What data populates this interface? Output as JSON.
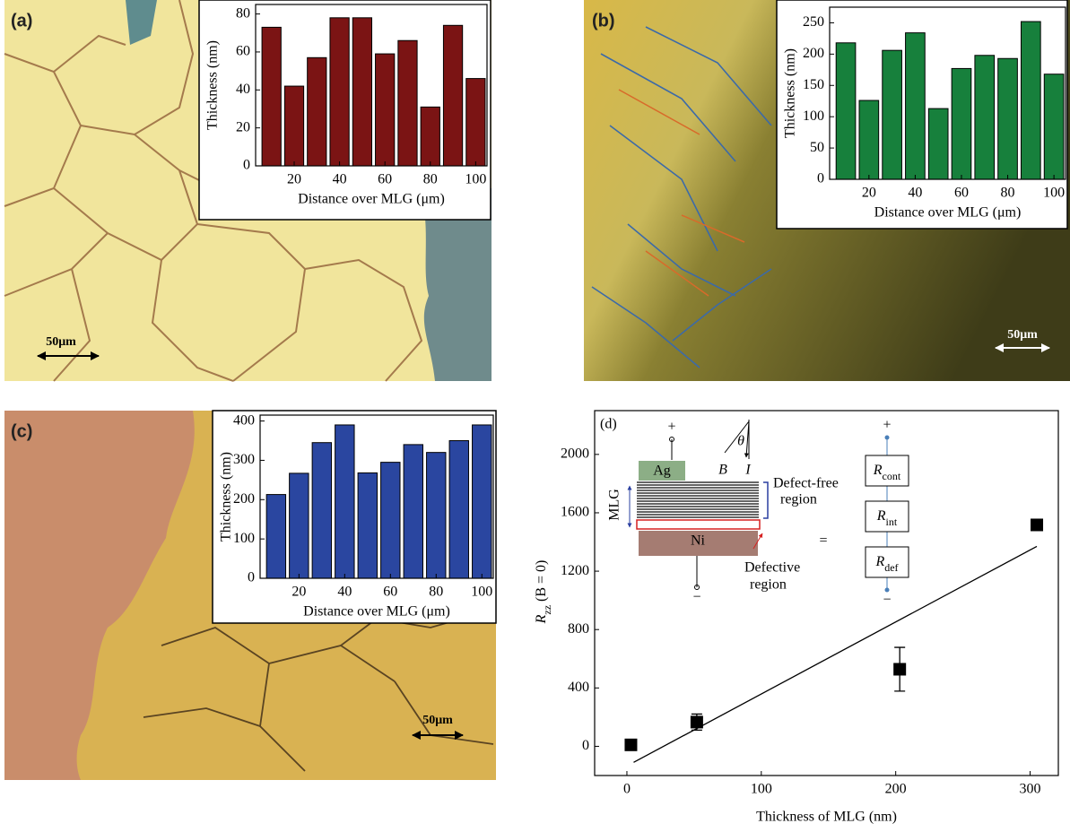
{
  "chart_data": [
    {
      "type": "bar",
      "panel_label": "(a)",
      "scale_bar_label": "50μm",
      "ylabel": "Thickness (nm)",
      "xlabel": "Distance over MLG (μm)",
      "x": [
        10,
        20,
        30,
        40,
        50,
        60,
        70,
        80,
        90,
        100
      ],
      "values": [
        73,
        42,
        57,
        78,
        78,
        59,
        66,
        31,
        74,
        46
      ],
      "color": "#7b1414",
      "xlim": [
        3,
        105
      ],
      "xticks": [
        20,
        40,
        60,
        80,
        100
      ],
      "ylim": [
        0,
        85
      ],
      "yticks": [
        0,
        20,
        40,
        60,
        80
      ]
    },
    {
      "type": "bar",
      "panel_label": "(b)",
      "scale_bar_label": "50μm",
      "ylabel": "Thickness (nm)",
      "xlabel": "Distance over MLG (μm)",
      "x": [
        10,
        20,
        30,
        40,
        50,
        60,
        70,
        80,
        90,
        100
      ],
      "values": [
        218,
        126,
        206,
        234,
        113,
        177,
        198,
        193,
        252,
        168
      ],
      "color": "#17803c",
      "xlim": [
        3,
        105
      ],
      "xticks": [
        20,
        40,
        60,
        80,
        100
      ],
      "ylim": [
        0,
        275
      ],
      "yticks": [
        0,
        50,
        100,
        150,
        200,
        250
      ]
    },
    {
      "type": "bar",
      "panel_label": "(c)",
      "scale_bar_label": "50μm",
      "ylabel": "Thickness (nm)",
      "xlabel": "Distance over MLG (μm)",
      "x": [
        10,
        20,
        30,
        40,
        50,
        60,
        70,
        80,
        90,
        100
      ],
      "values": [
        213,
        267,
        345,
        390,
        268,
        295,
        340,
        320,
        350,
        390
      ],
      "color": "#2a46a0",
      "xlim": [
        3,
        105
      ],
      "xticks": [
        20,
        40,
        60,
        80,
        100
      ],
      "ylim": [
        0,
        415
      ],
      "yticks": [
        0,
        100,
        200,
        300,
        400
      ]
    },
    {
      "type": "scatter",
      "panel_label": "(d)",
      "xlabel": "Thickness of MLG (nm)",
      "ylabel": {
        "symbol": "R",
        "subscript": "zz",
        "condition": "(B = 0)"
      },
      "x": [
        3,
        52,
        203,
        305
      ],
      "values": [
        10,
        166,
        528,
        1517
      ],
      "errors": [
        null,
        55,
        150,
        null
      ],
      "color": "#000000",
      "fit_line": {
        "x": [
          5,
          305
        ],
        "y": [
          -110,
          1370
        ]
      },
      "xlim": [
        -24,
        321
      ],
      "xticks": [
        0,
        100,
        200,
        300
      ],
      "ylim": [
        -200,
        2300
      ],
      "yticks": [
        0,
        400,
        800,
        1200,
        1600,
        2000
      ],
      "inset_diagram": {
        "plus_left": "+",
        "minus_left": "−",
        "contact": "Ag",
        "field": "B",
        "current": "I",
        "angle": "θ",
        "stack": "MLG",
        "substrate": "Ni",
        "defect_free": [
          "Defect-free",
          "region"
        ],
        "defective": [
          "Defective",
          "region"
        ],
        "equals": "=",
        "plus_right": "+",
        "minus_right": "−",
        "resistors": [
          {
            "symbol": "R",
            "subscript": "cont"
          },
          {
            "symbol": "R",
            "subscript": "int"
          },
          {
            "symbol": "R",
            "subscript": "def"
          }
        ]
      }
    }
  ]
}
